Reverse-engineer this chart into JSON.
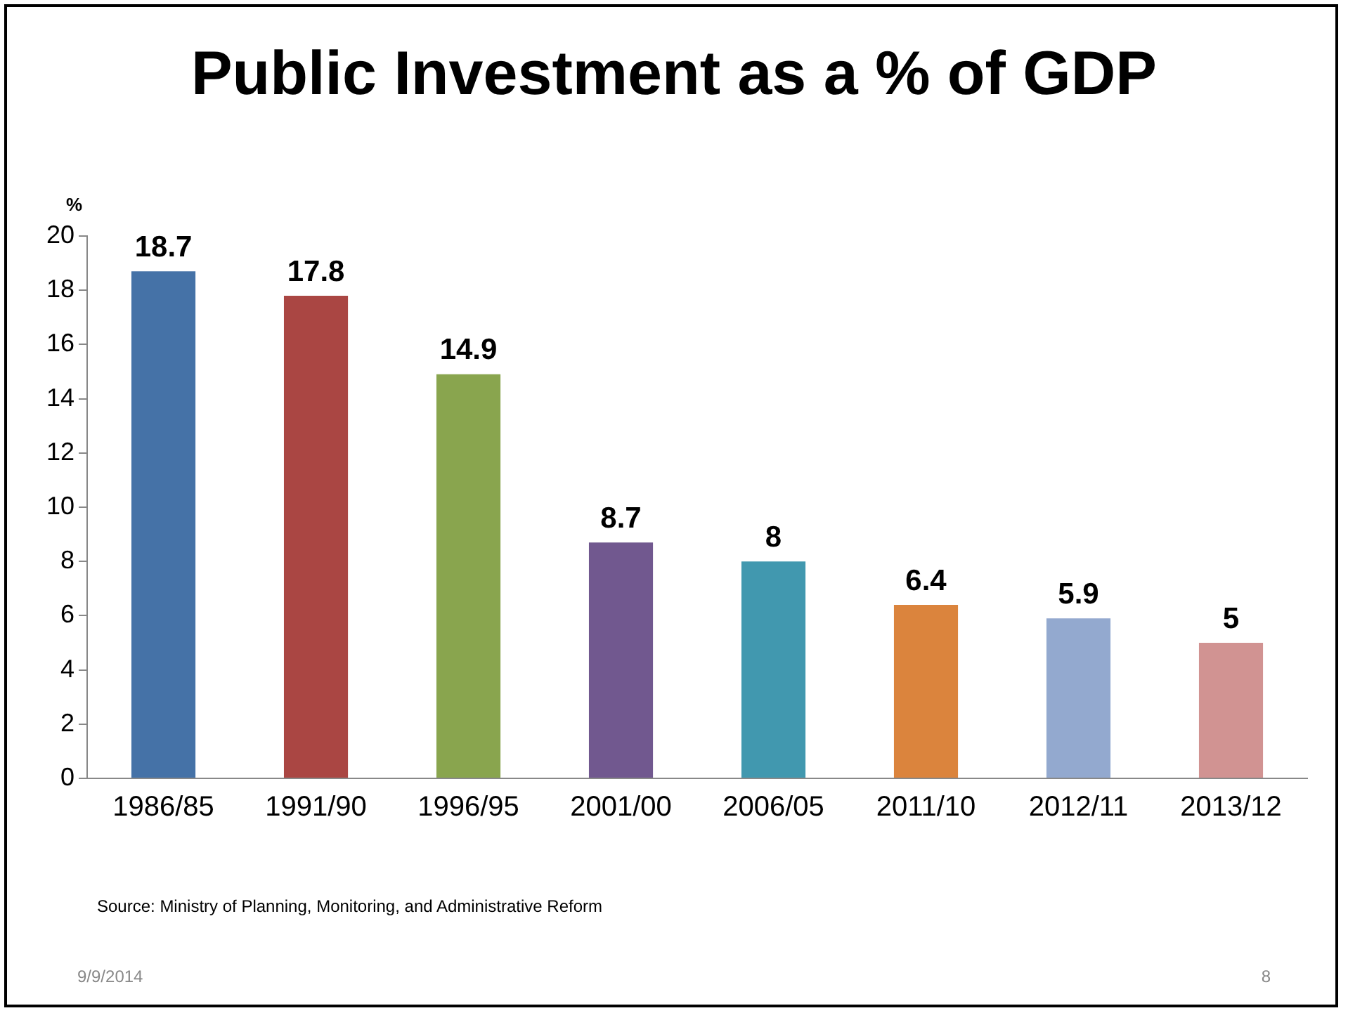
{
  "chart_data": {
    "type": "bar",
    "title": "Public Investment as a % of GDP",
    "ylabel": "%",
    "categories": [
      "1986/85",
      "1991/90",
      "1996/95",
      "2001/00",
      "2006/05",
      "2011/10",
      "2012/11",
      "2013/12"
    ],
    "values": [
      18.7,
      17.8,
      14.9,
      8.7,
      8,
      6.4,
      5.9,
      5
    ],
    "colors": [
      "#4572a7",
      "#aa4643",
      "#89a54e",
      "#71588f",
      "#4198af",
      "#db843d",
      "#93a9cf",
      "#d19392"
    ],
    "ylim": [
      0,
      20
    ],
    "yticks": [
      0,
      2,
      4,
      6,
      8,
      10,
      12,
      14,
      16,
      18,
      20
    ],
    "grid": false,
    "legend": false,
    "data_labels": true,
    "annotations": [
      "Source: Ministry of Planning, Monitoring, and Administrative Reform",
      "9/9/2014",
      "8"
    ]
  }
}
